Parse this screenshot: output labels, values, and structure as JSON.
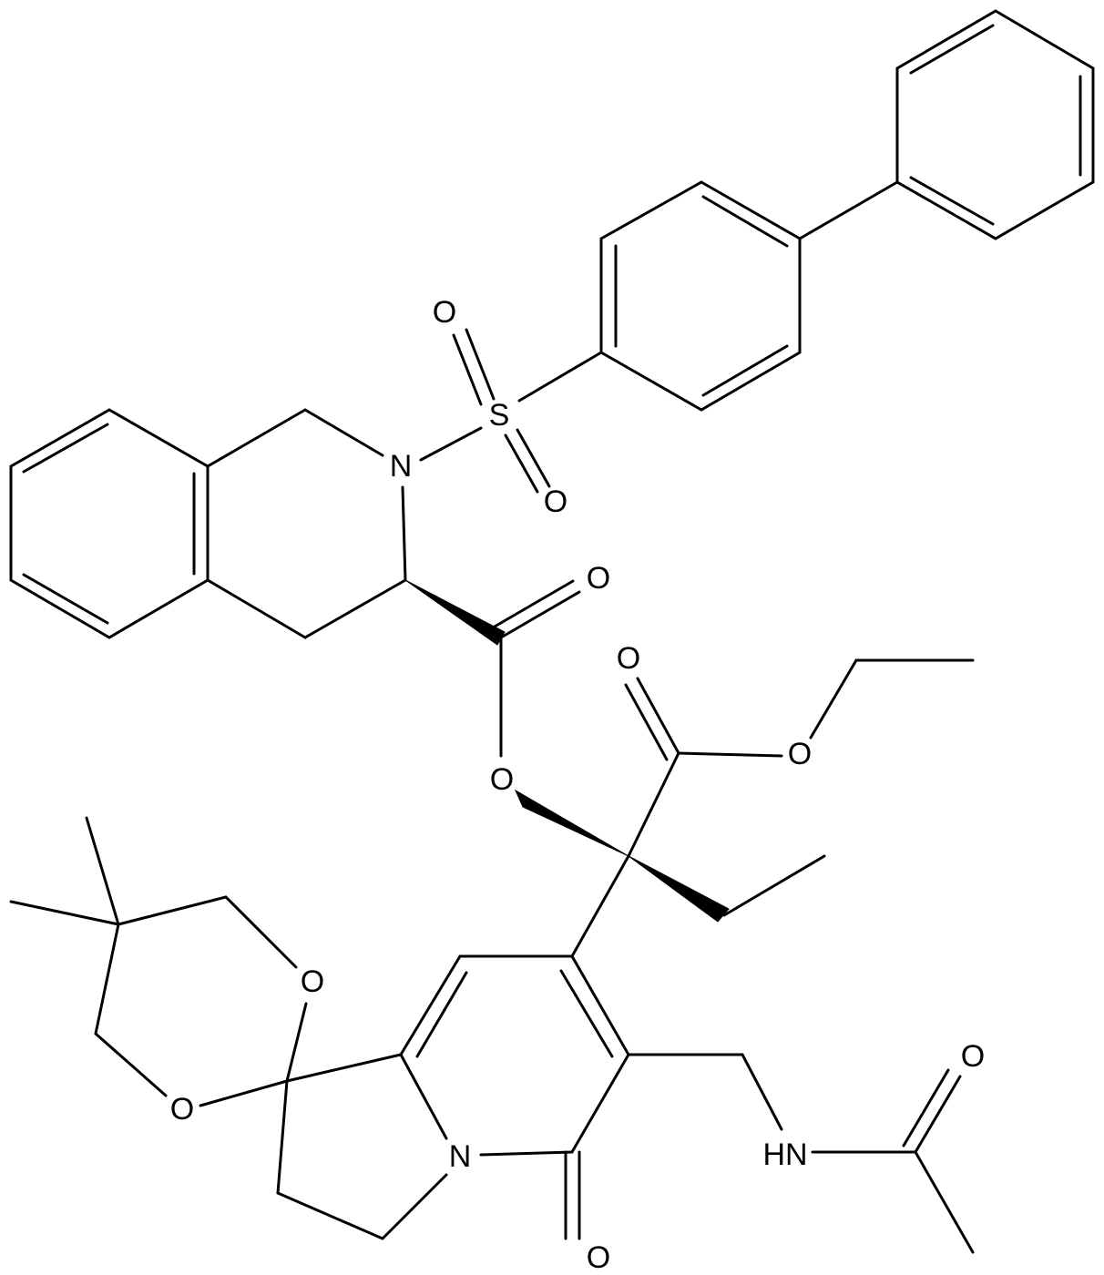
{
  "atoms": [
    {
      "label": "S"
    },
    {
      "label": "O"
    },
    {
      "label": "O"
    },
    {
      "label": "N"
    },
    {
      "label": "O"
    },
    {
      "label": "O"
    },
    {
      "label": "O"
    },
    {
      "label": "O"
    },
    {
      "label": "O"
    },
    {
      "label": "O"
    },
    {
      "label": "N"
    },
    {
      "label": "O"
    },
    {
      "label": "HN"
    },
    {
      "label": "O"
    }
  ]
}
